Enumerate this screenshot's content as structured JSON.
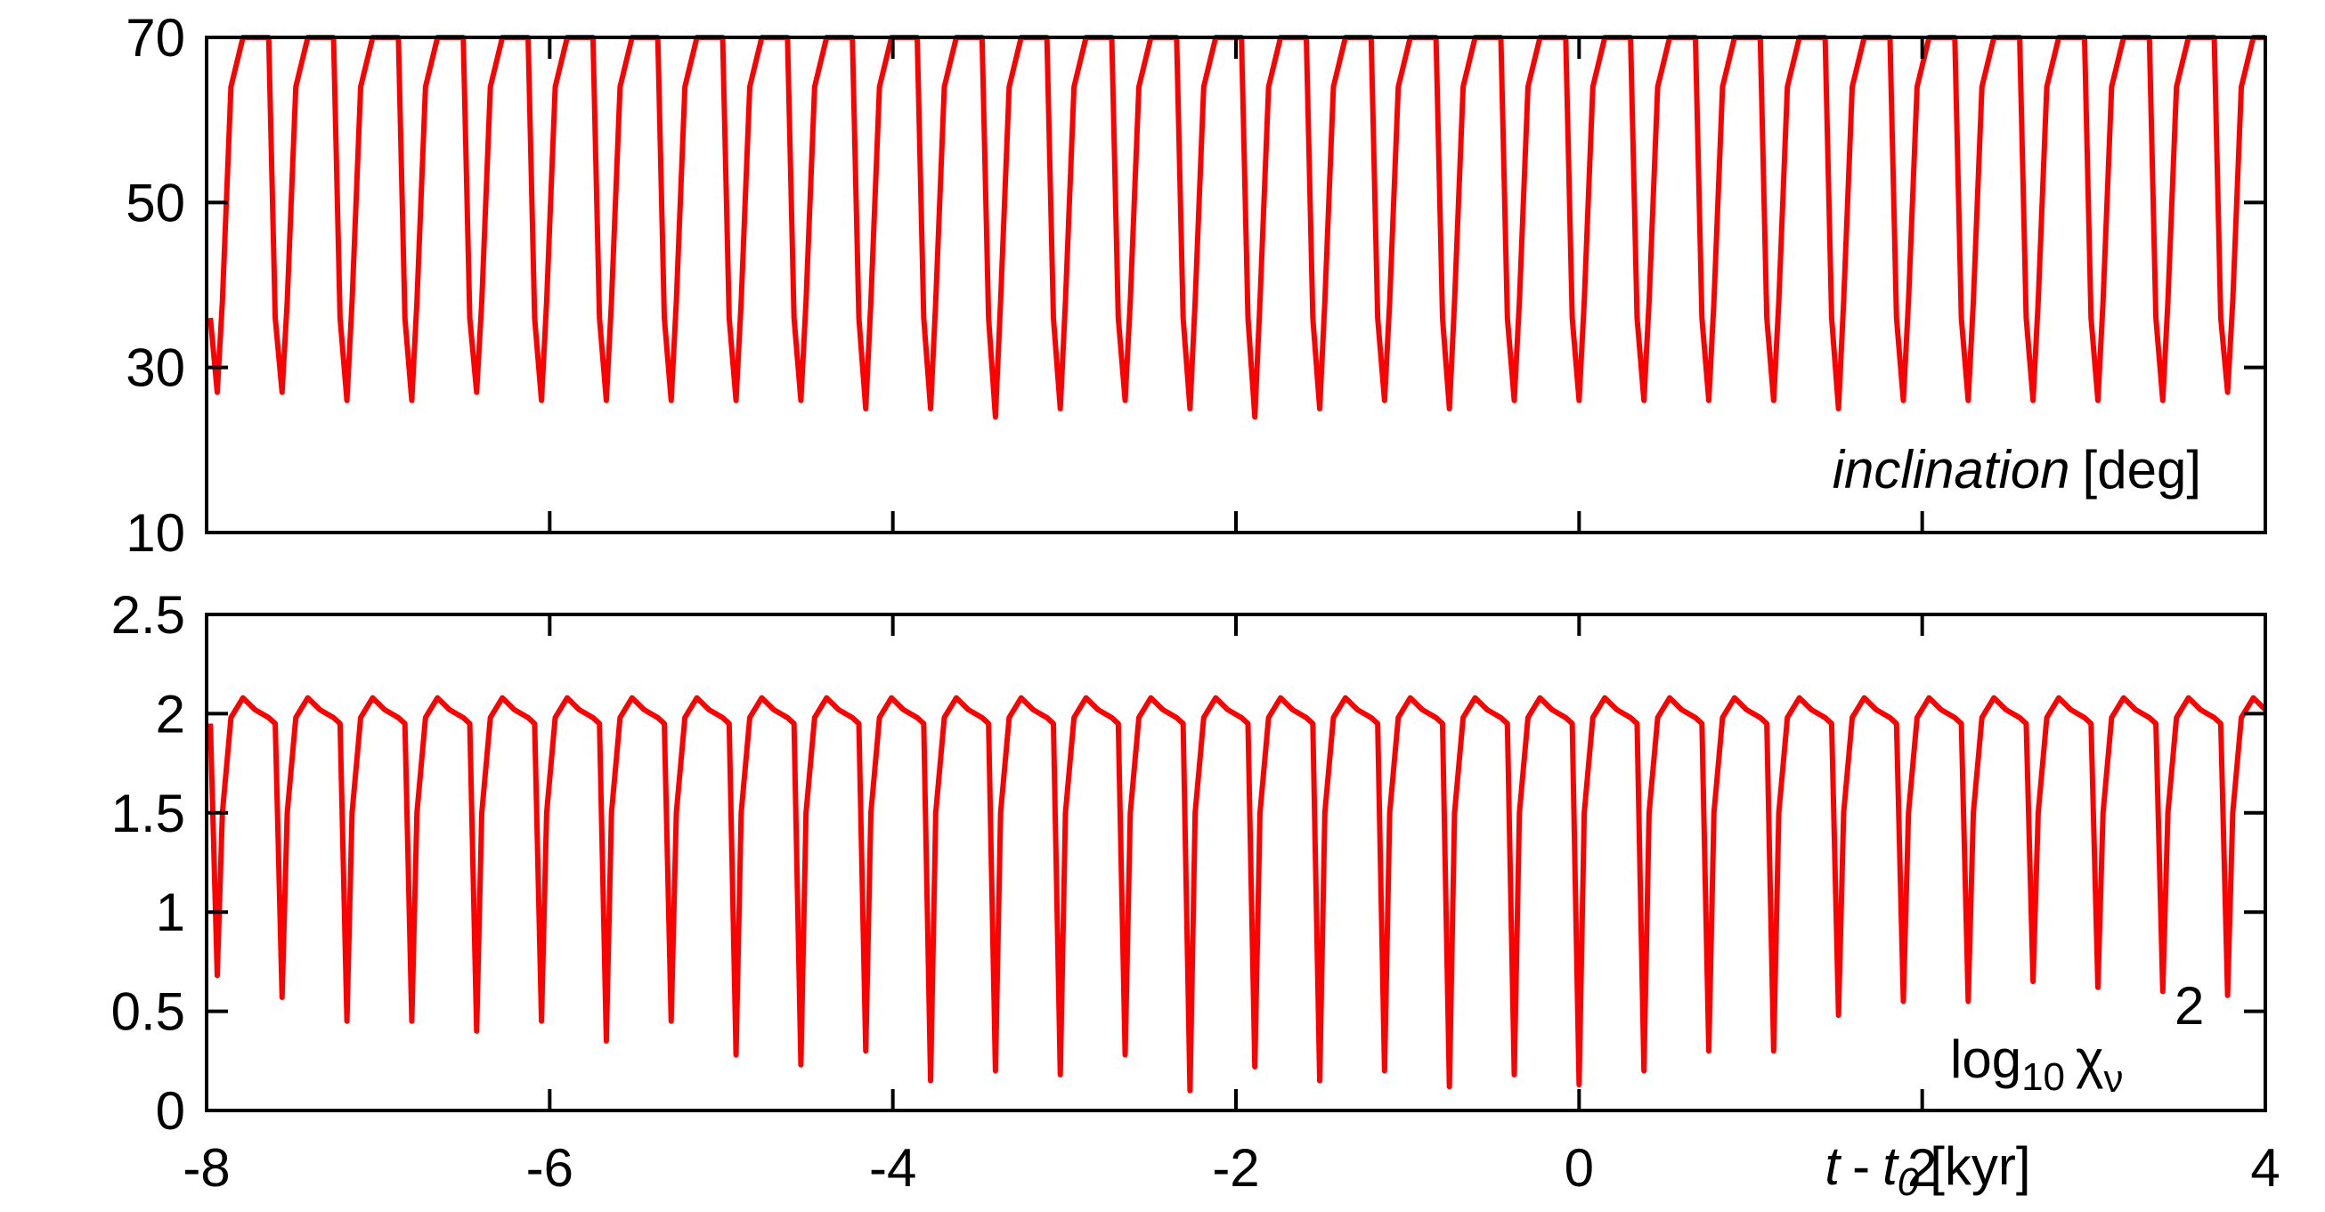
{
  "chart_data": [
    {
      "type": "line",
      "color": "#ff0000",
      "xlim": [
        -8,
        4
      ],
      "xticks": [
        -8,
        -6,
        -4,
        -2,
        0,
        2,
        4
      ],
      "xticklabels": false,
      "ylim": [
        10,
        70
      ],
      "yticks": [
        10,
        30,
        50,
        70
      ],
      "label": {
        "italic": "inclination",
        "text": "[deg]"
      },
      "x": [
        -7.978,
        -7.938,
        -7.908,
        -7.858,
        -7.788,
        -7.718,
        -7.638,
        -7.6,
        -7.56,
        -7.53,
        -7.48,
        -7.41,
        -7.34,
        -7.26,
        -7.222,
        -7.182,
        -7.152,
        -7.102,
        -7.032,
        -6.962,
        -6.882,
        -6.844,
        -6.804,
        -6.774,
        -6.724,
        -6.654,
        -6.584,
        -6.504,
        -6.466,
        -6.426,
        -6.396,
        -6.346,
        -6.276,
        -6.206,
        -6.126,
        -6.088,
        -6.048,
        -6.018,
        -5.968,
        -5.898,
        -5.828,
        -5.748,
        -5.71,
        -5.67,
        -5.64,
        -5.59,
        -5.52,
        -5.45,
        -5.37,
        -5.332,
        -5.292,
        -5.262,
        -5.212,
        -5.142,
        -5.072,
        -4.992,
        -4.954,
        -4.914,
        -4.884,
        -4.834,
        -4.764,
        -4.694,
        -4.614,
        -4.576,
        -4.536,
        -4.506,
        -4.456,
        -4.386,
        -4.316,
        -4.236,
        -4.198,
        -4.158,
        -4.128,
        -4.078,
        -4.008,
        -3.938,
        -3.858,
        -3.82,
        -3.78,
        -3.75,
        -3.7,
        -3.63,
        -3.56,
        -3.48,
        -3.442,
        -3.402,
        -3.372,
        -3.322,
        -3.252,
        -3.182,
        -3.102,
        -3.064,
        -3.024,
        -2.994,
        -2.944,
        -2.874,
        -2.804,
        -2.724,
        -2.686,
        -2.646,
        -2.616,
        -2.566,
        -2.496,
        -2.426,
        -2.346,
        -2.308,
        -2.268,
        -2.238,
        -2.188,
        -2.118,
        -2.048,
        -1.968,
        -1.93,
        -1.89,
        -1.86,
        -1.81,
        -1.74,
        -1.67,
        -1.59,
        -1.552,
        -1.512,
        -1.482,
        -1.432,
        -1.362,
        -1.292,
        -1.212,
        -1.174,
        -1.134,
        -1.104,
        -1.054,
        -0.984,
        -0.914,
        -0.834,
        -0.796,
        -0.756,
        -0.726,
        -0.676,
        -0.606,
        -0.536,
        -0.456,
        -0.418,
        -0.378,
        -0.348,
        -0.298,
        -0.228,
        -0.158,
        -0.078,
        -0.04,
        0,
        0.03,
        0.08,
        0.15,
        0.22,
        0.3,
        0.338,
        0.378,
        0.408,
        0.458,
        0.528,
        0.598,
        0.678,
        0.716,
        0.756,
        0.786,
        0.836,
        0.906,
        0.976,
        1.056,
        1.094,
        1.134,
        1.164,
        1.214,
        1.284,
        1.354,
        1.434,
        1.472,
        1.512,
        1.542,
        1.592,
        1.662,
        1.732,
        1.812,
        1.85,
        1.89,
        1.92,
        1.97,
        2.04,
        2.11,
        2.19,
        2.228,
        2.268,
        2.298,
        2.348,
        2.418,
        2.488,
        2.568,
        2.606,
        2.646,
        2.676,
        2.726,
        2.796,
        2.866,
        2.946,
        2.984,
        3.024,
        3.054,
        3.104,
        3.174,
        3.244,
        3.324,
        3.362,
        3.402,
        3.432,
        3.482,
        3.552,
        3.622,
        3.702,
        3.74,
        3.78,
        3.81,
        3.86,
        3.93,
        4.0
      ],
      "values": [
        36,
        27,
        38,
        64,
        70,
        70,
        70,
        36,
        27,
        38,
        64,
        70,
        70,
        70,
        36,
        26,
        38,
        64,
        70,
        70,
        70,
        36,
        26,
        38,
        64,
        70,
        70,
        70,
        36,
        27,
        38,
        64,
        70,
        70,
        70,
        36,
        26,
        38,
        64,
        70,
        70,
        70,
        36,
        26,
        38,
        64,
        70,
        70,
        70,
        36,
        26,
        38,
        64,
        70,
        70,
        70,
        36,
        26,
        38,
        64,
        70,
        70,
        70,
        36,
        26,
        38,
        64,
        70,
        70,
        70,
        36,
        25,
        38,
        64,
        70,
        70,
        70,
        36,
        25,
        38,
        64,
        70,
        70,
        70,
        36,
        24,
        38,
        64,
        70,
        70,
        70,
        36,
        25,
        38,
        64,
        70,
        70,
        70,
        36,
        26,
        38,
        64,
        70,
        70,
        70,
        36,
        25,
        38,
        64,
        70,
        70,
        70,
        36,
        24,
        38,
        64,
        70,
        70,
        70,
        36,
        25,
        38,
        64,
        70,
        70,
        70,
        36,
        26,
        38,
        64,
        70,
        70,
        70,
        36,
        25,
        38,
        64,
        70,
        70,
        70,
        36,
        26,
        38,
        64,
        70,
        70,
        70,
        36,
        26,
        38,
        64,
        70,
        70,
        70,
        36,
        26,
        38,
        64,
        70,
        70,
        70,
        36,
        26,
        38,
        64,
        70,
        70,
        70,
        36,
        26,
        38,
        64,
        70,
        70,
        70,
        36,
        25,
        38,
        64,
        70,
        70,
        70,
        36,
        26,
        38,
        64,
        70,
        70,
        70,
        36,
        26,
        38,
        64,
        70,
        70,
        70,
        36,
        26,
        38,
        64,
        70,
        70,
        70,
        36,
        26,
        38,
        64,
        70,
        70,
        70,
        36,
        26,
        38,
        64,
        70,
        70,
        70,
        36,
        27,
        38,
        64,
        70,
        70
      ]
    },
    {
      "type": "line",
      "color": "#ff0000",
      "xlim": [
        -8,
        4
      ],
      "xticks": [
        -8,
        -6,
        -4,
        -2,
        0,
        2,
        4
      ],
      "xticklabels": true,
      "ylim": [
        0,
        2.5
      ],
      "yticks": [
        0,
        0.5,
        1,
        1.5,
        2,
        2.5
      ],
      "label": {
        "text": "log",
        "sub": "10",
        "symbol": "χ",
        "symbol_sub": "ν",
        "sup": "2"
      },
      "xlabel": {
        "italic": "t",
        "text": "-",
        "italic2": "t",
        "sub": "0",
        "unit": "[kyr]"
      },
      "x": [
        -7.978,
        -7.938,
        -7.908,
        -7.858,
        -7.788,
        -7.718,
        -7.638,
        -7.6,
        -7.56,
        -7.53,
        -7.48,
        -7.41,
        -7.34,
        -7.26,
        -7.222,
        -7.182,
        -7.152,
        -7.102,
        -7.032,
        -6.962,
        -6.882,
        -6.844,
        -6.804,
        -6.774,
        -6.724,
        -6.654,
        -6.584,
        -6.504,
        -6.466,
        -6.426,
        -6.396,
        -6.346,
        -6.276,
        -6.206,
        -6.126,
        -6.088,
        -6.048,
        -6.018,
        -5.968,
        -5.898,
        -5.828,
        -5.748,
        -5.71,
        -5.67,
        -5.64,
        -5.59,
        -5.52,
        -5.45,
        -5.37,
        -5.332,
        -5.292,
        -5.262,
        -5.212,
        -5.142,
        -5.072,
        -4.992,
        -4.954,
        -4.914,
        -4.884,
        -4.834,
        -4.764,
        -4.694,
        -4.614,
        -4.576,
        -4.536,
        -4.506,
        -4.456,
        -4.386,
        -4.316,
        -4.236,
        -4.198,
        -4.158,
        -4.128,
        -4.078,
        -4.008,
        -3.938,
        -3.858,
        -3.82,
        -3.78,
        -3.75,
        -3.7,
        -3.63,
        -3.56,
        -3.48,
        -3.442,
        -3.402,
        -3.372,
        -3.322,
        -3.252,
        -3.182,
        -3.102,
        -3.064,
        -3.024,
        -2.994,
        -2.944,
        -2.874,
        -2.804,
        -2.724,
        -2.686,
        -2.646,
        -2.616,
        -2.566,
        -2.496,
        -2.426,
        -2.346,
        -2.308,
        -2.268,
        -2.238,
        -2.188,
        -2.118,
        -2.048,
        -1.968,
        -1.93,
        -1.89,
        -1.86,
        -1.81,
        -1.74,
        -1.67,
        -1.59,
        -1.552,
        -1.512,
        -1.482,
        -1.432,
        -1.362,
        -1.292,
        -1.212,
        -1.174,
        -1.134,
        -1.104,
        -1.054,
        -0.984,
        -0.914,
        -0.834,
        -0.796,
        -0.756,
        -0.726,
        -0.676,
        -0.606,
        -0.536,
        -0.456,
        -0.418,
        -0.378,
        -0.348,
        -0.298,
        -0.228,
        -0.158,
        -0.078,
        -0.04,
        0,
        0.03,
        0.08,
        0.15,
        0.22,
        0.3,
        0.338,
        0.378,
        0.408,
        0.458,
        0.528,
        0.598,
        0.678,
        0.716,
        0.756,
        0.786,
        0.836,
        0.906,
        0.976,
        1.056,
        1.094,
        1.134,
        1.164,
        1.214,
        1.284,
        1.354,
        1.434,
        1.472,
        1.512,
        1.542,
        1.592,
        1.662,
        1.732,
        1.812,
        1.85,
        1.89,
        1.92,
        1.97,
        2.04,
        2.11,
        2.19,
        2.228,
        2.268,
        2.298,
        2.348,
        2.418,
        2.488,
        2.568,
        2.606,
        2.646,
        2.676,
        2.726,
        2.796,
        2.866,
        2.946,
        2.984,
        3.024,
        3.054,
        3.104,
        3.174,
        3.244,
        3.324,
        3.362,
        3.402,
        3.432,
        3.482,
        3.552,
        3.622,
        3.702,
        3.74,
        3.78,
        3.81,
        3.86,
        3.93,
        4.0
      ],
      "values": [
        1.95,
        0.68,
        1.5,
        1.98,
        2.08,
        2.02,
        1.98,
        1.95,
        0.57,
        1.5,
        1.98,
        2.08,
        2.02,
        1.98,
        1.95,
        0.45,
        1.5,
        1.98,
        2.08,
        2.02,
        1.98,
        1.95,
        0.45,
        1.5,
        1.98,
        2.08,
        2.02,
        1.98,
        1.95,
        0.4,
        1.5,
        1.98,
        2.08,
        2.02,
        1.98,
        1.95,
        0.45,
        1.5,
        1.98,
        2.08,
        2.02,
        1.98,
        1.95,
        0.35,
        1.5,
        1.98,
        2.08,
        2.02,
        1.98,
        1.95,
        0.45,
        1.5,
        1.98,
        2.08,
        2.02,
        1.98,
        1.95,
        0.28,
        1.5,
        1.98,
        2.08,
        2.02,
        1.98,
        1.95,
        0.23,
        1.5,
        1.98,
        2.08,
        2.02,
        1.98,
        1.95,
        0.3,
        1.5,
        1.98,
        2.08,
        2.02,
        1.98,
        1.95,
        0.15,
        1.5,
        1.98,
        2.08,
        2.02,
        1.98,
        1.95,
        0.2,
        1.5,
        1.98,
        2.08,
        2.02,
        1.98,
        1.95,
        0.18,
        1.5,
        1.98,
        2.08,
        2.02,
        1.98,
        1.95,
        0.28,
        1.5,
        1.98,
        2.08,
        2.02,
        1.98,
        1.95,
        0.1,
        1.5,
        1.98,
        2.08,
        2.02,
        1.98,
        1.95,
        0.22,
        1.5,
        1.98,
        2.08,
        2.02,
        1.98,
        1.95,
        0.15,
        1.5,
        1.98,
        2.08,
        2.02,
        1.98,
        1.95,
        0.2,
        1.5,
        1.98,
        2.08,
        2.02,
        1.98,
        1.95,
        0.12,
        1.5,
        1.98,
        2.08,
        2.02,
        1.98,
        1.95,
        0.18,
        1.5,
        1.98,
        2.08,
        2.02,
        1.98,
        1.95,
        0.13,
        1.5,
        1.98,
        2.08,
        2.02,
        1.98,
        1.95,
        0.2,
        1.5,
        1.98,
        2.08,
        2.02,
        1.98,
        1.95,
        0.3,
        1.5,
        1.98,
        2.08,
        2.02,
        1.98,
        1.95,
        0.3,
        1.5,
        1.98,
        2.08,
        2.02,
        1.98,
        1.95,
        0.48,
        1.5,
        1.98,
        2.08,
        2.02,
        1.98,
        1.95,
        0.55,
        1.5,
        1.98,
        2.08,
        2.02,
        1.98,
        1.95,
        0.55,
        1.5,
        1.98,
        2.08,
        2.02,
        1.98,
        1.95,
        0.65,
        1.5,
        1.98,
        2.08,
        2.02,
        1.98,
        1.95,
        0.62,
        1.5,
        1.98,
        2.08,
        2.02,
        1.98,
        1.95,
        0.6,
        1.5,
        1.98,
        2.08,
        2.02,
        1.98,
        1.95,
        0.58,
        1.5,
        1.98,
        2.08,
        2.02
      ]
    }
  ]
}
